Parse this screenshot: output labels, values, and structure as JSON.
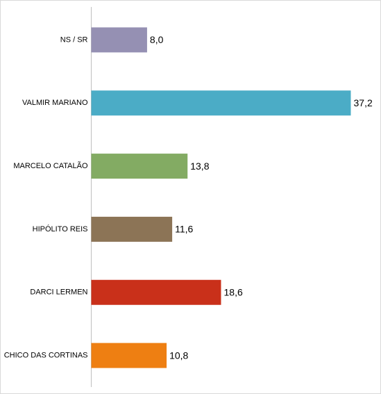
{
  "chart_data": {
    "type": "bar",
    "orientation": "horizontal",
    "categories": [
      "NS / SR",
      "VALMIR MARIANO",
      "MARCELO CATALÃO",
      "HIPÓLITO REIS",
      "DARCI LERMEN",
      "CHICO DAS CORTINAS"
    ],
    "values": [
      8.0,
      37.2,
      13.8,
      11.6,
      18.6,
      10.8
    ],
    "value_labels": [
      "8,0",
      "37,2",
      "13,8",
      "11,6",
      "18,6",
      "10,8"
    ],
    "colors": [
      "#9590b3",
      "#4bacc6",
      "#83ab63",
      "#8c7456",
      "#c9301a",
      "#ee7f12"
    ]
  }
}
